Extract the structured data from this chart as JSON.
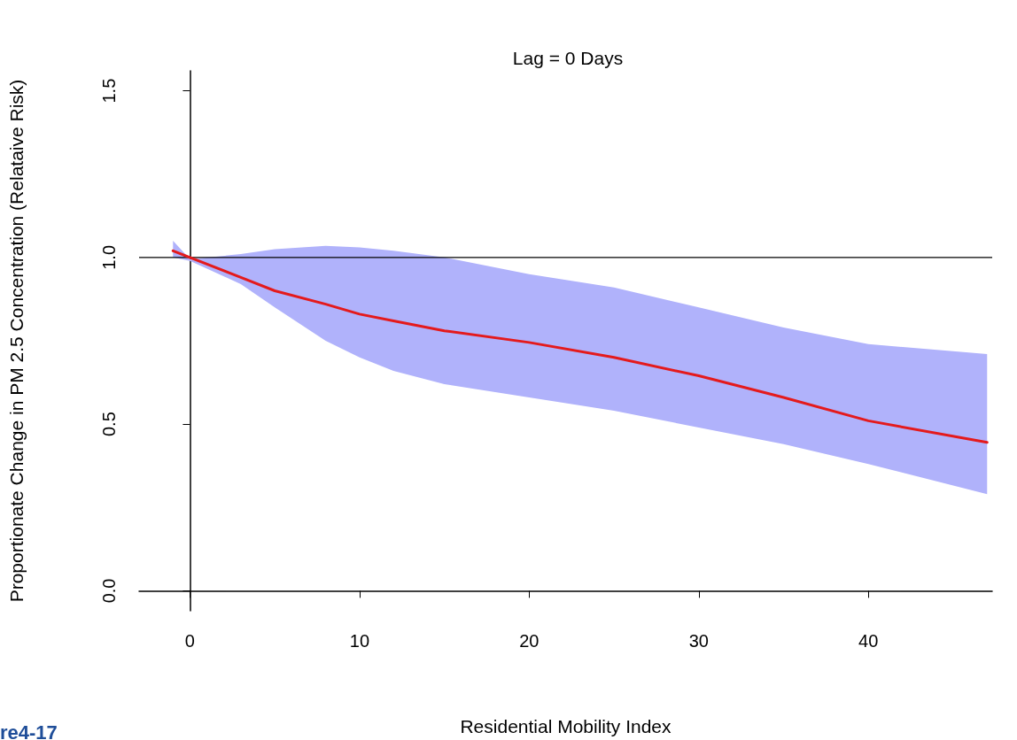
{
  "chart_data": {
    "type": "line",
    "title": "Lag = 0 Days",
    "xlabel": "Residential Mobility Index",
    "ylabel": "Proportionate Change in PM 2.5 Concentration (Relataive Risk)",
    "annotations": [
      "re4-17"
    ],
    "xlim": [
      -3,
      47.3
    ],
    "xticks": [
      0,
      10,
      20,
      30,
      40
    ],
    "ylim": [
      -0.06,
      1.56
    ],
    "yticks": [
      {
        "value": 0,
        "label": "0.0"
      },
      {
        "value": 0.5,
        "label": "0.5"
      },
      {
        "value": 1,
        "label": "1.0"
      },
      {
        "value": 1.5,
        "label": "1.5"
      }
    ],
    "marker": "none",
    "line_style": "solid",
    "ref_lines": [
      {
        "axis": "y",
        "value": 1.0,
        "color": "#000000"
      }
    ],
    "series": [
      {
        "color": "#e41a1c",
        "x": [
          -1,
          0,
          3,
          5,
          8,
          10,
          12,
          15,
          20,
          25,
          30,
          35,
          40,
          47
        ],
        "values": [
          1.02,
          1.0,
          0.94,
          0.9,
          0.86,
          0.83,
          0.81,
          0.78,
          0.745,
          0.7,
          0.645,
          0.58,
          0.51,
          0.445
        ],
        "lower": [
          1.0,
          0.99,
          0.92,
          0.85,
          0.75,
          0.7,
          0.66,
          0.62,
          0.58,
          0.54,
          0.49,
          0.44,
          0.38,
          0.29
        ],
        "upper": [
          1.05,
          0.995,
          1.01,
          1.025,
          1.035,
          1.03,
          1.02,
          1.0,
          0.95,
          0.91,
          0.85,
          0.79,
          0.74,
          0.71
        ]
      }
    ]
  }
}
